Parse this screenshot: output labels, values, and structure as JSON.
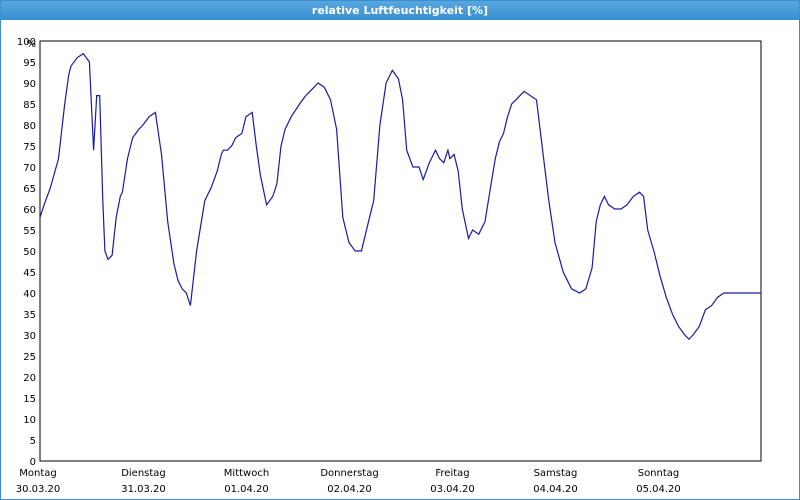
{
  "window": {
    "title": "relative Luftfeuchtigkeit [%]"
  },
  "chart_data": {
    "type": "line",
    "title": "relative Luftfeuchtigkeit [%]",
    "ylabel": "%",
    "ylim": [
      0,
      100
    ],
    "yticks": [
      0,
      5,
      10,
      15,
      20,
      25,
      30,
      35,
      40,
      45,
      50,
      55,
      60,
      65,
      70,
      75,
      80,
      85,
      90,
      95,
      100
    ],
    "xlim": [
      0,
      7
    ],
    "grid": true,
    "line_color": "#1a1aa6",
    "days": [
      {
        "weekday": "Montag",
        "date": "30.03.20"
      },
      {
        "weekday": "Dienstag",
        "date": "31.03.20"
      },
      {
        "weekday": "Mittwoch",
        "date": "01.04.20"
      },
      {
        "weekday": "Donnerstag",
        "date": "02.04.20"
      },
      {
        "weekday": "Freitag",
        "date": "03.04.20"
      },
      {
        "weekday": "Samstag",
        "date": "04.04.20"
      },
      {
        "weekday": "Sonntag",
        "date": "05.04.20"
      }
    ],
    "series": [
      {
        "x": [
          0,
          0.04,
          0.1,
          0.18,
          0.24,
          0.28,
          0.3,
          0.36,
          0.42,
          0.48,
          0.52,
          0.55,
          0.58,
          0.6,
          0.61,
          0.63,
          0.66,
          0.7,
          0.74,
          0.78,
          0.8,
          0.85,
          0.9,
          0.96,
          1,
          1.06,
          1.12,
          1.18,
          1.24,
          1.3,
          1.34,
          1.38,
          1.42,
          1.46,
          1.52,
          1.6,
          1.66,
          1.72,
          1.76,
          1.78,
          1.82,
          1.86,
          1.9,
          1.96,
          2,
          2.06,
          2.1,
          2.14,
          2.2,
          2.26,
          2.3,
          2.34,
          2.38,
          2.44,
          2.52,
          2.58,
          2.62,
          2.66,
          2.7,
          2.76,
          2.82,
          2.88,
          2.94,
          3,
          3.06,
          3.12,
          3.18,
          3.24,
          3.3,
          3.36,
          3.42,
          3.48,
          3.52,
          3.56,
          3.62,
          3.68,
          3.72,
          3.78,
          3.84,
          3.88,
          3.92,
          3.96,
          3.98,
          4.02,
          4.06,
          4.1,
          4.16,
          4.2,
          4.26,
          4.32,
          4.38,
          4.42,
          4.46,
          4.5,
          4.54,
          4.58,
          4.62,
          4.66,
          4.7,
          4.76,
          4.82,
          4.88,
          4.94,
          5,
          5.08,
          5.16,
          5.24,
          5.3,
          5.36,
          5.4,
          5.44,
          5.48,
          5.52,
          5.58,
          5.64,
          5.7,
          5.76,
          5.82,
          5.86,
          5.9,
          5.96,
          6.02,
          6.08,
          6.14,
          6.2,
          6.26,
          6.3,
          6.34,
          6.4,
          6.46,
          6.52,
          6.58,
          6.64,
          6.7,
          6.74,
          6.78,
          6.82,
          6.86,
          6.9,
          6.94,
          7
        ],
        "values": [
          58,
          61,
          65,
          72,
          85,
          92,
          94,
          96,
          97,
          95,
          74,
          87,
          87,
          70,
          62,
          50,
          48,
          49,
          58,
          63,
          64,
          72,
          77,
          79,
          80,
          82,
          83,
          73,
          57,
          47,
          43,
          41,
          40,
          37,
          50,
          62,
          65,
          69,
          73,
          74,
          74,
          75,
          77,
          78,
          82,
          83,
          75,
          68,
          61,
          63,
          66,
          75,
          79,
          82,
          85,
          87,
          88,
          89,
          90,
          89,
          86,
          79,
          58,
          52,
          50,
          50,
          56,
          62,
          80,
          90,
          93,
          91,
          86,
          74,
          70,
          70,
          67,
          71,
          74,
          72,
          71,
          74,
          72,
          73,
          69,
          60,
          53,
          55,
          54,
          57,
          66,
          72,
          76,
          78,
          82,
          85,
          86,
          87,
          88,
          87,
          86,
          74,
          62,
          52,
          45,
          41,
          40,
          41,
          46,
          57,
          61,
          63,
          61,
          60,
          60,
          61,
          63,
          64,
          63,
          55,
          50,
          44,
          39,
          35,
          32,
          30,
          29,
          30,
          32,
          36,
          37,
          39,
          40,
          40,
          40,
          40,
          40,
          40,
          40,
          40,
          40
        ]
      }
    ]
  }
}
